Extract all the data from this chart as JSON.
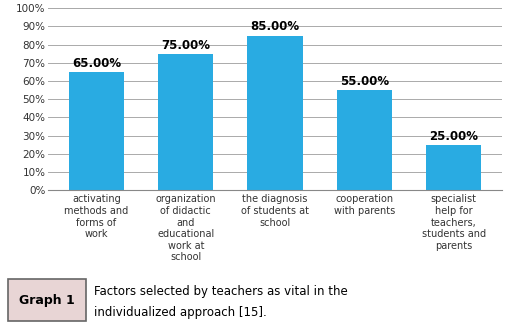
{
  "categories": [
    "activating\nmethods and\nforms of\nwork",
    "organization\nof didactic\nand\neducational\nwork at\nschool",
    "the diagnosis\nof students at\nschool",
    "cooperation\nwith parents",
    "specialist\nhelp for\nteachers,\nstudents and\nparents"
  ],
  "values": [
    65,
    75,
    85,
    55,
    25
  ],
  "bar_color": "#29ABE2",
  "ylim": [
    0,
    100
  ],
  "yticks": [
    0,
    10,
    20,
    30,
    40,
    50,
    60,
    70,
    80,
    90,
    100
  ],
  "ytick_labels": [
    "0%",
    "10%",
    "20%",
    "30%",
    "40%",
    "50%",
    "60%",
    "70%",
    "80%",
    "90%",
    "100%"
  ],
  "grid_color": "#aaaaaa",
  "background_color": "#ffffff",
  "caption_label": "Graph 1",
  "caption_text": "Factors selected by teachers as vital in the individualized approach [15].",
  "caption_bg": "#e8d5d5",
  "bar_label_fontsize": 8.5,
  "tick_label_fontsize": 7.5,
  "caption_fontsize": 8.5
}
